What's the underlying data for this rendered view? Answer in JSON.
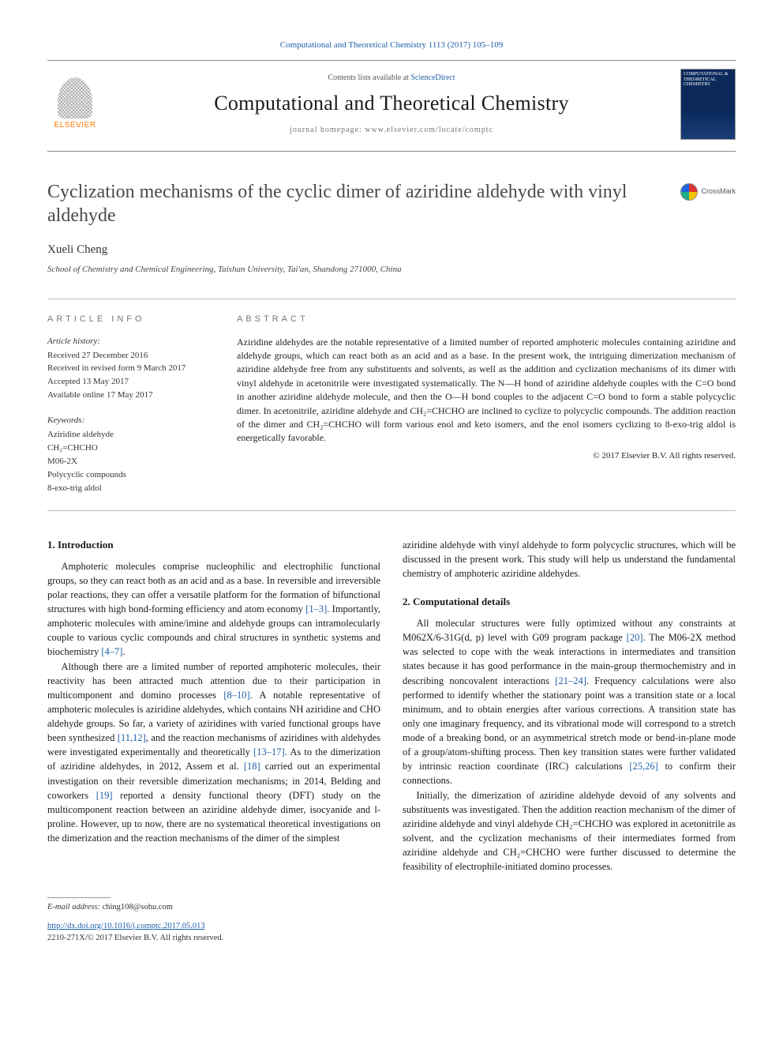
{
  "citation": "Computational and Theoretical Chemistry 1113 (2017) 105–109",
  "header": {
    "contents_prefix": "Contents lists available at ",
    "contents_link": "ScienceDirect",
    "journal": "Computational and Theoretical Chemistry",
    "homepage_prefix": "journal homepage: ",
    "homepage_url": "www.elsevier.com/locate/comptc",
    "publisher_brand": "ELSEVIER",
    "cover_caption": "COMPUTATIONAL & THEORETICAL CHEMISTRY"
  },
  "crossmark_label": "CrossMark",
  "article": {
    "title": "Cyclization mechanisms of the cyclic dimer of aziridine aldehyde with vinyl aldehyde",
    "author": "Xueli Cheng",
    "affiliation": "School of Chemistry and Chemical Engineering, Taishan University, Tai'an, Shandong 271000, China"
  },
  "info": {
    "heading": "ARTICLE INFO",
    "history_label": "Article history:",
    "history": [
      "Received 27 December 2016",
      "Received in revised form 9 March 2017",
      "Accepted 13 May 2017",
      "Available online 17 May 2017"
    ],
    "keywords_label": "Keywords:",
    "keywords": [
      "Aziridine aldehyde",
      "CH₂=CHCHO",
      "M06-2X",
      "Polycyclic compounds",
      "8-exo-trig aldol"
    ]
  },
  "abstract": {
    "heading": "ABSTRACT",
    "text": "Aziridine aldehydes are the notable representative of a limited number of reported amphoteric molecules containing aziridine and aldehyde groups, which can react both as an acid and as a base. In the present work, the intriguing dimerization mechanism of aziridine aldehyde free from any substituents and solvents, as well as the addition and cyclization mechanisms of its dimer with vinyl aldehyde in acetonitrile were investigated systematically. The N—H bond of aziridine aldehyde couples with the C=O bond in another aziridine aldehyde molecule, and then the O—H bond couples to the adjacent C=O bond to form a stable polycyclic dimer. In acetonitrile, aziridine aldehyde and CH₂=CHCHO are inclined to cyclize to polycyclic compounds. The addition reaction of the dimer and CH₂=CHCHO will form various enol and keto isomers, and the enol isomers cyclizing to 8-exo-trig aldol is energetically favorable.",
    "copyright": "© 2017 Elsevier B.V. All rights reserved."
  },
  "sections": {
    "intro": {
      "heading": "1. Introduction",
      "p1": "Amphoteric molecules comprise nucleophilic and electrophilic functional groups, so they can react both as an acid and as a base. In reversible and irreversible polar reactions, they can offer a versatile platform for the formation of bifunctional structures with high bond-forming efficiency and atom economy [1–3]. Importantly, amphoteric molecules with amine/imine and aldehyde groups can intramolecularly couple to various cyclic compounds and chiral structures in synthetic systems and biochemistry [4–7].",
      "p2": "Although there are a limited number of reported amphoteric molecules, their reactivity has been attracted much attention due to their participation in multicomponent and domino processes [8–10]. A notable representative of amphoteric molecules is aziridine aldehydes, which contains NH aziridine and CHO aldehyde groups. So far, a variety of aziridines with varied functional groups have been synthesized [11,12], and the reaction mechanisms of aziridines with aldehydes were investigated experimentally and theoretically [13–17]. As to the dimerization of aziridine aldehydes, in 2012, Assem et al. [18] carried out an experimental investigation on their reversible dimerization mechanisms; in 2014, Belding and coworkers [19] reported a density functional theory (DFT) study on the multicomponent reaction between an aziridine aldehyde dimer, isocyanide and l-proline. However, up to now, there are no systematical theoretical investigations on the dimerization and the reaction mechanisms of the dimer of the simplest",
      "p2b": "aziridine aldehyde with vinyl aldehyde to form polycyclic structures, which will be discussed in the present work. This study will help us understand the fundamental chemistry of amphoteric aziridine aldehydes."
    },
    "comp": {
      "heading": "2. Computational details",
      "p1": "All molecular structures were fully optimized without any constraints at M062X/6-31G(d, p) level with G09 program package [20]. The M06-2X method was selected to cope with the weak interactions in intermediates and transition states because it has good performance in the main-group thermochemistry and in describing noncovalent interactions [21–24]. Frequency calculations were also performed to identify whether the stationary point was a transition state or a local minimum, and to obtain energies after various corrections. A transition state has only one imaginary frequency, and its vibrational mode will correspond to a stretch mode of a breaking bond, or an asymmetrical stretch mode or bend-in-plane mode of a group/atom-shifting process. Then key transition states were further validated by intrinsic reaction coordinate (IRC) calculations [25,26] to confirm their connections.",
      "p2": "Initially, the dimerization of aziridine aldehyde devoid of any solvents and substituents was investigated. Then the addition reaction mechanism of the dimer of aziridine aldehyde and vinyl aldehyde CH₂=CHCHO was explored in acetonitrile as solvent, and the cyclization mechanisms of their intermediates formed from aziridine aldehyde and CH₂=CHCHO were further discussed to determine the feasibility of electrophile-initiated domino processes."
    }
  },
  "footer": {
    "email_label": "E-mail address: ",
    "email": "ching108@sohu.com",
    "doi": "http://dx.doi.org/10.1016/j.comptc.2017.05.013",
    "issn_line": "2210-271X/© 2017 Elsevier B.V. All rights reserved."
  },
  "colors": {
    "link": "#2060a8",
    "brand_orange": "#ff6600",
    "text": "#1a1a1a",
    "rule": "#bbbbbb"
  }
}
